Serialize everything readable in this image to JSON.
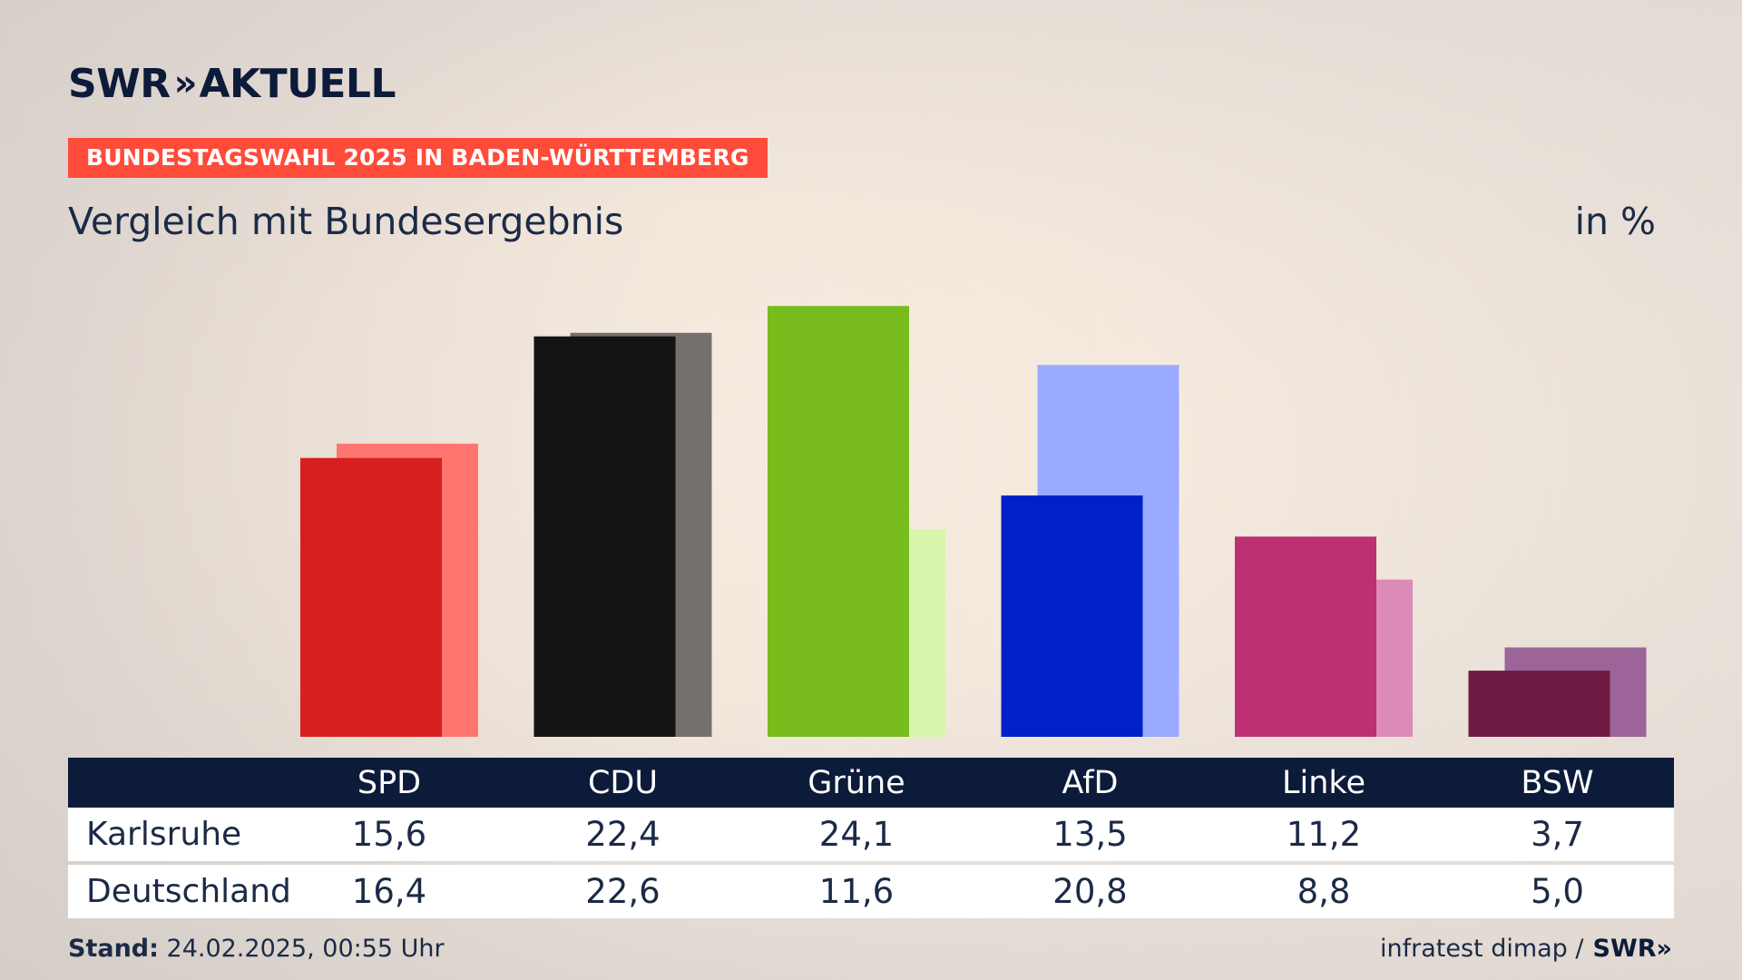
{
  "header": {
    "logo_text": "SWR",
    "logo_chevrons": "»",
    "logo_suffix": "AKTUELL",
    "badge": "BUNDESTAGSWAHL 2025 IN BADEN-WÜRTTEMBERG",
    "subtitle": "Vergleich mit Bundesergebnis",
    "unit": "in %"
  },
  "table": {
    "row_labels": [
      "Karlsruhe",
      "Deutschland"
    ]
  },
  "footer": {
    "stand_label": "Stand:",
    "stand_value": "24.02.2025, 00:55 Uhr",
    "source": "infratest dimap /",
    "source_brand": "SWR",
    "source_brand_chevrons": "»"
  },
  "chart_data": {
    "type": "bar",
    "categories": [
      "SPD",
      "CDU",
      "Grüne",
      "AfD",
      "Linke",
      "BSW"
    ],
    "series": [
      {
        "name": "Karlsruhe",
        "values": [
          15.6,
          22.4,
          24.1,
          13.5,
          11.2,
          3.7
        ],
        "labels": [
          "15,6",
          "22,4",
          "24,1",
          "13,5",
          "11,2",
          "3,7"
        ],
        "colors": [
          "#d81f1f",
          "#141414",
          "#79bc1d",
          "#0021c9",
          "#bd3073",
          "#6e1a43"
        ]
      },
      {
        "name": "Deutschland",
        "values": [
          16.4,
          22.6,
          11.6,
          20.8,
          8.8,
          5.0
        ],
        "labels": [
          "16,4",
          "22,6",
          "11,6",
          "20,8",
          "8,8",
          "5,0"
        ],
        "colors": [
          "#ff7670",
          "#73706e",
          "#d9f5ad",
          "#9aabff",
          "#de8ab8",
          "#9c6499"
        ]
      }
    ],
    "ylim": [
      0,
      30
    ],
    "grid": false,
    "legend": "table-below"
  }
}
